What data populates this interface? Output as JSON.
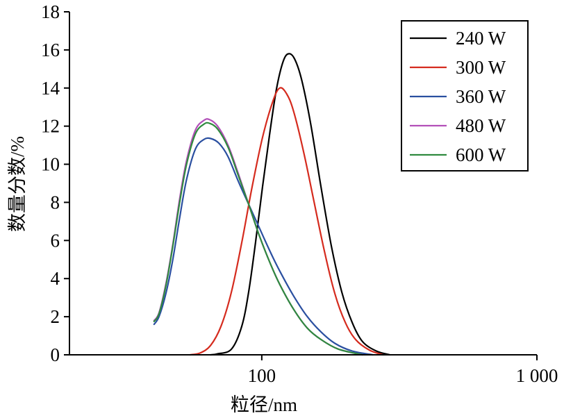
{
  "chart_data": {
    "type": "line",
    "xlabel": "粒径/nm",
    "ylabel": "数量分数/%",
    "xscale": "log",
    "xlim": [
      20,
      1000
    ],
    "ylim": [
      0,
      18
    ],
    "xticks": [
      100,
      1000
    ],
    "xtick_labels": [
      "100",
      "1 000"
    ],
    "yticks": [
      0,
      2,
      4,
      6,
      8,
      10,
      12,
      14,
      16,
      18
    ],
    "ytick_labels": [
      "0",
      "2",
      "4",
      "6",
      "8",
      "10",
      "12",
      "14",
      "16",
      "18"
    ],
    "grid": false,
    "legend": "top-right",
    "series": [
      {
        "name": "240 W",
        "color": "#000000",
        "x": [
          65.2,
          69.1,
          77.6,
          84.6,
          89.6,
          94.9,
          100.6,
          106.6,
          112.9,
          119.6,
          125.3,
          131.9,
          139.8,
          150.7,
          164.2,
          179.1,
          195.3,
          213.0,
          232.2,
          260.6,
          292.5
        ],
        "y": [
          0,
          0.05,
          0.3,
          1.5,
          3.3,
          5.9,
          8.8,
          11.5,
          13.9,
          15.4,
          15.8,
          15.5,
          14.4,
          12.1,
          8.8,
          5.7,
          3.3,
          1.7,
          0.7,
          0.2,
          0
        ]
      },
      {
        "name": "300 W",
        "color": "#d52b1e",
        "x": [
          54.9,
          59.8,
          65.2,
          71.1,
          77.6,
          84.6,
          92.2,
          100.6,
          109.7,
          116.2,
          123.1,
          130.4,
          142.2,
          155.0,
          169.1,
          184.4,
          201.1,
          219.3,
          246.0,
          276.1
        ],
        "y": [
          0,
          0.1,
          0.5,
          1.5,
          3.3,
          5.9,
          8.8,
          11.4,
          13.3,
          14.0,
          13.7,
          12.8,
          10.6,
          8.0,
          5.4,
          3.2,
          1.7,
          0.8,
          0.25,
          0
        ]
      },
      {
        "name": "360 W",
        "color": "#2a4fa0",
        "x": [
          40.6,
          42.3,
          44.8,
          47.5,
          50.3,
          53.3,
          57.4,
          61.6,
          65.2,
          69.9,
          75.4,
          82.2,
          89.6,
          97.7,
          106.6,
          116.2,
          130.4,
          146.4,
          164.2,
          184.4,
          213.0,
          253.2
        ],
        "y": [
          1.6,
          2.0,
          3.2,
          5.0,
          7.2,
          9.2,
          10.8,
          11.3,
          11.35,
          11.1,
          10.4,
          9.1,
          7.9,
          6.7,
          5.5,
          4.4,
          3.1,
          2.0,
          1.2,
          0.6,
          0.2,
          0
        ]
      },
      {
        "name": "480 W",
        "color": "#b24fb8",
        "x": [
          40.6,
          42.3,
          44.8,
          47.5,
          50.3,
          53.3,
          57.4,
          61.6,
          64.5,
          69.1,
          75.4,
          82.2,
          89.6,
          97.7,
          106.6,
          116.2,
          130.4,
          146.4,
          164.2,
          189.8,
          232.2
        ],
        "y": [
          1.8,
          2.2,
          3.7,
          5.8,
          8.2,
          10.2,
          11.8,
          12.3,
          12.35,
          12.0,
          11.0,
          9.5,
          7.9,
          6.3,
          4.9,
          3.7,
          2.4,
          1.4,
          0.8,
          0.3,
          0
        ]
      },
      {
        "name": "600 W",
        "color": "#2f8a3f",
        "x": [
          40.6,
          42.3,
          44.8,
          47.5,
          50.3,
          53.3,
          57.4,
          61.6,
          64.5,
          69.1,
          75.4,
          82.2,
          89.6,
          97.7,
          106.6,
          116.2,
          130.4,
          146.4,
          164.2,
          189.8,
          232.2
        ],
        "y": [
          1.75,
          2.15,
          3.6,
          5.7,
          8.0,
          10.0,
          11.6,
          12.1,
          12.15,
          11.85,
          10.9,
          9.4,
          7.9,
          6.3,
          4.9,
          3.7,
          2.4,
          1.4,
          0.8,
          0.3,
          0
        ]
      }
    ]
  }
}
